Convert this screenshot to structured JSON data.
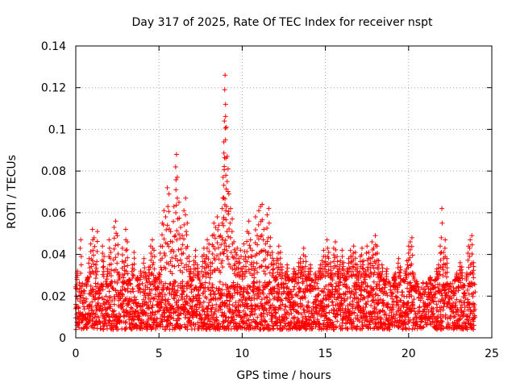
{
  "chart_data": {
    "type": "scatter",
    "title": "Day 317 of 2025, Rate Of TEC Index for receiver nspt",
    "xlabel": "GPS time / hours",
    "ylabel": "ROTI / TECUs",
    "xlim": [
      0,
      25
    ],
    "ylim": [
      0,
      0.14
    ],
    "xticks": [
      0,
      5,
      10,
      15,
      20,
      25
    ],
    "xtick_labels": [
      "0",
      "5",
      "10",
      "15",
      "20",
      "25"
    ],
    "yticks": [
      0,
      0.02,
      0.04,
      0.06,
      0.08,
      0.1,
      0.12,
      0.14
    ],
    "ytick_labels": [
      "0",
      "0.02",
      "0.04",
      "0.06",
      "0.08",
      "0.1",
      "0.12",
      "0.14"
    ],
    "grid": true,
    "marker": "+",
    "color": "#ff0000",
    "series": [
      {
        "name": "ROTI",
        "points": [
          [
            0.0,
            0.016
          ],
          [
            0.1,
            0.032
          ],
          [
            0.2,
            0.022
          ],
          [
            0.25,
            0.012
          ],
          [
            0.3,
            0.047
          ],
          [
            0.4,
            0.026
          ],
          [
            0.5,
            0.018
          ],
          [
            0.6,
            0.011
          ],
          [
            0.7,
            0.029
          ],
          [
            0.8,
            0.038
          ],
          [
            0.9,
            0.045
          ],
          [
            1.0,
            0.052
          ],
          [
            1.1,
            0.048
          ],
          [
            1.2,
            0.035
          ],
          [
            1.3,
            0.051
          ],
          [
            1.4,
            0.021
          ],
          [
            1.5,
            0.015
          ],
          [
            1.6,
            0.044
          ],
          [
            1.7,
            0.039
          ],
          [
            1.8,
            0.027
          ],
          [
            1.9,
            0.033
          ],
          [
            2.0,
            0.047
          ],
          [
            2.1,
            0.041
          ],
          [
            2.2,
            0.024
          ],
          [
            2.3,
            0.053
          ],
          [
            2.4,
            0.056
          ],
          [
            2.5,
            0.049
          ],
          [
            2.6,
            0.031
          ],
          [
            2.7,
            0.019
          ],
          [
            2.8,
            0.043
          ],
          [
            2.9,
            0.036
          ],
          [
            3.0,
            0.052
          ],
          [
            3.1,
            0.046
          ],
          [
            3.2,
            0.028
          ],
          [
            3.3,
            0.022
          ],
          [
            3.4,
            0.035
          ],
          [
            3.5,
            0.041
          ],
          [
            3.6,
            0.017
          ],
          [
            3.7,
            0.029
          ],
          [
            3.8,
            0.024
          ],
          [
            3.9,
            0.032
          ],
          [
            4.0,
            0.026
          ],
          [
            4.1,
            0.038
          ],
          [
            4.2,
            0.031
          ],
          [
            4.3,
            0.021
          ],
          [
            4.4,
            0.034
          ],
          [
            4.5,
            0.044
          ],
          [
            4.6,
            0.047
          ],
          [
            4.7,
            0.042
          ],
          [
            4.8,
            0.029
          ],
          [
            4.9,
            0.023
          ],
          [
            5.0,
            0.031
          ],
          [
            5.1,
            0.044
          ],
          [
            5.2,
            0.055
          ],
          [
            5.3,
            0.061
          ],
          [
            5.4,
            0.058
          ],
          [
            5.5,
            0.072
          ],
          [
            5.6,
            0.069
          ],
          [
            5.7,
            0.051
          ],
          [
            5.8,
            0.046
          ],
          [
            5.9,
            0.063
          ],
          [
            6.0,
            0.082
          ],
          [
            6.05,
            0.088
          ],
          [
            6.1,
            0.077
          ],
          [
            6.2,
            0.065
          ],
          [
            6.3,
            0.053
          ],
          [
            6.4,
            0.049
          ],
          [
            6.5,
            0.061
          ],
          [
            6.6,
            0.067
          ],
          [
            6.7,
            0.055
          ],
          [
            6.8,
            0.039
          ],
          [
            6.9,
            0.033
          ],
          [
            7.0,
            0.028
          ],
          [
            7.1,
            0.037
          ],
          [
            7.2,
            0.042
          ],
          [
            7.3,
            0.035
          ],
          [
            7.4,
            0.031
          ],
          [
            7.5,
            0.024
          ],
          [
            7.6,
            0.039
          ],
          [
            7.7,
            0.043
          ],
          [
            7.8,
            0.038
          ],
          [
            7.9,
            0.047
          ],
          [
            8.0,
            0.045
          ],
          [
            8.1,
            0.036
          ],
          [
            8.2,
            0.049
          ],
          [
            8.3,
            0.055
          ],
          [
            8.4,
            0.053
          ],
          [
            8.5,
            0.058
          ],
          [
            8.6,
            0.054
          ],
          [
            8.7,
            0.049
          ],
          [
            8.8,
            0.062
          ],
          [
            8.85,
            0.077
          ],
          [
            8.9,
            0.094
          ],
          [
            8.93,
            0.104
          ],
          [
            8.95,
            0.119
          ],
          [
            8.97,
            0.126
          ],
          [
            9.0,
            0.112
          ],
          [
            9.05,
            0.101
          ],
          [
            9.1,
            0.087
          ],
          [
            9.15,
            0.081
          ],
          [
            9.2,
            0.069
          ],
          [
            9.3,
            0.062
          ],
          [
            9.4,
            0.057
          ],
          [
            9.5,
            0.046
          ],
          [
            9.6,
            0.041
          ],
          [
            9.7,
            0.043
          ],
          [
            9.8,
            0.038
          ],
          [
            9.9,
            0.042
          ],
          [
            10.0,
            0.033
          ],
          [
            10.1,
            0.045
          ],
          [
            10.2,
            0.039
          ],
          [
            10.3,
            0.051
          ],
          [
            10.4,
            0.056
          ],
          [
            10.5,
            0.047
          ],
          [
            10.6,
            0.042
          ],
          [
            10.7,
            0.036
          ],
          [
            10.8,
            0.058
          ],
          [
            10.9,
            0.049
          ],
          [
            11.0,
            0.061
          ],
          [
            11.1,
            0.063
          ],
          [
            11.2,
            0.064
          ],
          [
            11.3,
            0.052
          ],
          [
            11.4,
            0.045
          ],
          [
            11.5,
            0.059
          ],
          [
            11.6,
            0.062
          ],
          [
            11.7,
            0.048
          ],
          [
            11.8,
            0.041
          ],
          [
            11.9,
            0.037
          ],
          [
            12.0,
            0.029
          ],
          [
            12.1,
            0.038
          ],
          [
            12.2,
            0.044
          ],
          [
            12.3,
            0.041
          ],
          [
            12.4,
            0.034
          ],
          [
            12.5,
            0.026
          ],
          [
            12.6,
            0.031
          ],
          [
            12.7,
            0.035
          ],
          [
            12.8,
            0.029
          ],
          [
            12.9,
            0.022
          ],
          [
            13.0,
            0.028
          ],
          [
            13.1,
            0.033
          ],
          [
            13.2,
            0.031
          ],
          [
            13.3,
            0.026
          ],
          [
            13.4,
            0.036
          ],
          [
            13.5,
            0.038
          ],
          [
            13.6,
            0.034
          ],
          [
            13.7,
            0.043
          ],
          [
            13.8,
            0.039
          ],
          [
            13.9,
            0.029
          ],
          [
            14.0,
            0.033
          ],
          [
            14.1,
            0.035
          ],
          [
            14.2,
            0.028
          ],
          [
            14.3,
            0.024
          ],
          [
            14.4,
            0.031
          ],
          [
            14.5,
            0.026
          ],
          [
            14.6,
            0.032
          ],
          [
            14.7,
            0.035
          ],
          [
            14.8,
            0.037
          ],
          [
            14.9,
            0.042
          ],
          [
            15.0,
            0.039
          ],
          [
            15.1,
            0.047
          ],
          [
            15.2,
            0.041
          ],
          [
            15.3,
            0.036
          ],
          [
            15.4,
            0.031
          ],
          [
            15.5,
            0.043
          ],
          [
            15.6,
            0.046
          ],
          [
            15.7,
            0.039
          ],
          [
            15.8,
            0.033
          ],
          [
            15.9,
            0.037
          ],
          [
            16.0,
            0.042
          ],
          [
            16.1,
            0.036
          ],
          [
            16.2,
            0.029
          ],
          [
            16.3,
            0.033
          ],
          [
            16.4,
            0.038
          ],
          [
            16.5,
            0.042
          ],
          [
            16.6,
            0.039
          ],
          [
            16.7,
            0.044
          ],
          [
            16.8,
            0.041
          ],
          [
            16.9,
            0.035
          ],
          [
            17.0,
            0.031
          ],
          [
            17.1,
            0.039
          ],
          [
            17.2,
            0.043
          ],
          [
            17.3,
            0.037
          ],
          [
            17.4,
            0.032
          ],
          [
            17.5,
            0.044
          ],
          [
            17.6,
            0.041
          ],
          [
            17.7,
            0.038
          ],
          [
            17.8,
            0.046
          ],
          [
            17.9,
            0.043
          ],
          [
            18.0,
            0.049
          ],
          [
            18.1,
            0.044
          ],
          [
            18.2,
            0.037
          ],
          [
            18.3,
            0.031
          ],
          [
            18.4,
            0.035
          ],
          [
            18.5,
            0.028
          ],
          [
            18.6,
            0.026
          ],
          [
            18.7,
            0.033
          ],
          [
            18.8,
            0.027
          ],
          [
            18.9,
            0.023
          ],
          [
            19.0,
            0.021
          ],
          [
            19.1,
            0.029
          ],
          [
            19.2,
            0.031
          ],
          [
            19.3,
            0.025
          ],
          [
            19.4,
            0.038
          ],
          [
            19.5,
            0.034
          ],
          [
            19.6,
            0.022
          ],
          [
            19.7,
            0.028
          ],
          [
            19.8,
            0.032
          ],
          [
            19.9,
            0.037
          ],
          [
            20.0,
            0.044
          ],
          [
            20.1,
            0.046
          ],
          [
            20.2,
            0.048
          ],
          [
            20.3,
            0.031
          ],
          [
            20.4,
            0.025
          ],
          [
            20.5,
            0.027
          ],
          [
            20.6,
            0.023
          ],
          [
            20.7,
            0.018
          ],
          [
            20.8,
            0.019
          ],
          [
            20.9,
            0.017
          ],
          [
            21.0,
            0.022
          ],
          [
            21.1,
            0.026
          ],
          [
            21.2,
            0.021
          ],
          [
            21.3,
            0.029
          ],
          [
            21.4,
            0.018
          ],
          [
            21.5,
            0.024
          ],
          [
            21.6,
            0.028
          ],
          [
            21.7,
            0.033
          ],
          [
            21.8,
            0.035
          ],
          [
            21.9,
            0.044
          ],
          [
            22.0,
            0.062
          ],
          [
            22.1,
            0.041
          ],
          [
            22.2,
            0.047
          ],
          [
            22.3,
            0.038
          ],
          [
            22.4,
            0.022
          ],
          [
            22.5,
            0.026
          ],
          [
            22.6,
            0.019
          ],
          [
            22.7,
            0.024
          ],
          [
            22.8,
            0.028
          ],
          [
            22.9,
            0.031
          ],
          [
            23.0,
            0.029
          ],
          [
            23.1,
            0.036
          ],
          [
            23.2,
            0.034
          ],
          [
            23.3,
            0.024
          ],
          [
            23.4,
            0.019
          ],
          [
            23.5,
            0.031
          ],
          [
            23.6,
            0.044
          ],
          [
            23.7,
            0.047
          ],
          [
            23.8,
            0.049
          ],
          [
            23.9,
            0.036
          ],
          [
            24.0,
            0.022
          ]
        ]
      }
    ],
    "baseline_band": {
      "description": "dense cloud of points across all hours",
      "x_range": [
        0,
        24
      ],
      "y_low": 0.004,
      "y_high": 0.027,
      "x_step": 0.045
    }
  }
}
